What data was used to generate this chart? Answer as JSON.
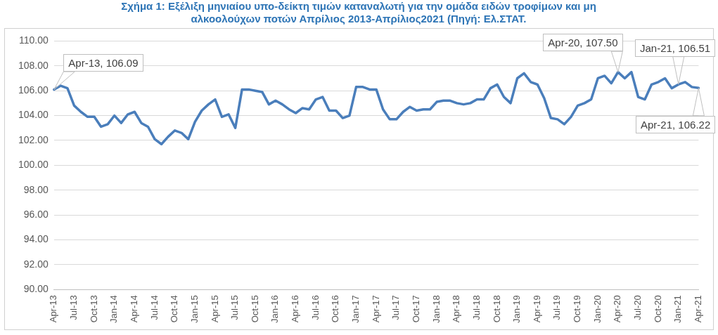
{
  "chart_data": {
    "type": "line",
    "title": "Σχήμα 1: Εξέλιξη μηνιαίου υπο-δείκτη τιμών καταναλωτή για την ομάδα ειδών τροφίμων και μη αλκοολούχων ποτών Απρίλιος 2013-Απρίλιος2021 (Πηγή: Ελ.ΣΤΑΤ.",
    "categories": [
      "Apr-13",
      null,
      null,
      "Jul-13",
      null,
      null,
      "Oct-13",
      null,
      null,
      "Jan-14",
      null,
      null,
      "Apr-14",
      null,
      null,
      "Jul-14",
      null,
      null,
      "Oct-14",
      null,
      null,
      "Jan-15",
      null,
      null,
      "Apr-15",
      null,
      null,
      "Jul-15",
      null,
      null,
      "Oct-15",
      null,
      null,
      "Jan-16",
      null,
      null,
      "Apr-16",
      null,
      null,
      "Jul-16",
      null,
      null,
      "Oct-16",
      null,
      null,
      "Jan-17",
      null,
      null,
      "Apr-17",
      null,
      null,
      "Jul-17",
      null,
      null,
      "Oct-17",
      null,
      null,
      "Jan-18",
      null,
      null,
      "Apr-18",
      null,
      null,
      "Jul-18",
      null,
      null,
      "Oct-18",
      null,
      null,
      "Jan-19",
      null,
      null,
      "Apr-19",
      null,
      null,
      "Jul-19",
      null,
      null,
      "Oct-19",
      null,
      null,
      "Jan-20",
      null,
      null,
      "Apr-20",
      null,
      null,
      "Jul-20",
      null,
      null,
      "Oct-20",
      null,
      null,
      "Jan-21",
      null,
      null,
      "Apr-21"
    ],
    "series": [
      {
        "color": "#4a7ebb",
        "values": [
          106.09,
          106.4,
          106.2,
          104.8,
          104.3,
          103.9,
          103.9,
          103.1,
          103.3,
          104.0,
          103.4,
          104.1,
          104.3,
          103.4,
          103.1,
          102.1,
          101.7,
          102.3,
          102.8,
          102.6,
          102.1,
          103.5,
          104.4,
          104.9,
          105.3,
          103.9,
          104.1,
          103.0,
          106.1,
          106.1,
          106.0,
          105.9,
          104.9,
          105.2,
          104.9,
          104.5,
          104.2,
          104.6,
          104.5,
          105.3,
          105.5,
          104.4,
          104.4,
          103.8,
          104.0,
          106.3,
          106.3,
          106.1,
          106.1,
          104.5,
          103.7,
          103.7,
          104.3,
          104.7,
          104.4,
          104.5,
          104.5,
          105.1,
          105.2,
          105.2,
          105.0,
          104.9,
          105.0,
          105.3,
          105.3,
          106.2,
          106.5,
          105.5,
          105.0,
          107.0,
          107.4,
          106.7,
          106.5,
          105.4,
          103.8,
          103.7,
          103.3,
          103.9,
          104.8,
          105.0,
          105.3,
          107.0,
          107.2,
          106.6,
          107.5,
          107.0,
          107.5,
          105.5,
          105.3,
          106.5,
          106.7,
          107.0,
          106.2,
          106.51,
          106.7,
          106.3,
          106.22
        ]
      }
    ],
    "ylim": [
      90,
      110
    ],
    "yticks": [
      {
        "value": 90,
        "label": "90.00"
      },
      {
        "value": 92,
        "label": "92.00"
      },
      {
        "value": 94,
        "label": "94.00"
      },
      {
        "value": 96,
        "label": "96.00"
      },
      {
        "value": 98,
        "label": "98.00"
      },
      {
        "value": 100,
        "label": "100.00"
      },
      {
        "value": 102,
        "label": "102.00"
      },
      {
        "value": 104,
        "label": "104.00"
      },
      {
        "value": 106,
        "label": "106.00"
      },
      {
        "value": 108,
        "label": "108.00"
      },
      {
        "value": 110,
        "label": "110.00"
      }
    ],
    "grid": "y",
    "legend": false,
    "marker": "none",
    "line_style": "solid",
    "annotations": [
      {
        "text": "Apr-13, 106.09",
        "x": "Apr-13",
        "y": 106.09
      },
      {
        "text": "Jan-21, 106.51",
        "x": "Jan-21",
        "y": 106.51
      },
      {
        "text": "Apr-20, 107.50",
        "x": "Apr-20",
        "y": 107.5
      },
      {
        "text": "Apr-21, 106.22",
        "x": "Apr-21",
        "y": 106.22
      }
    ]
  }
}
